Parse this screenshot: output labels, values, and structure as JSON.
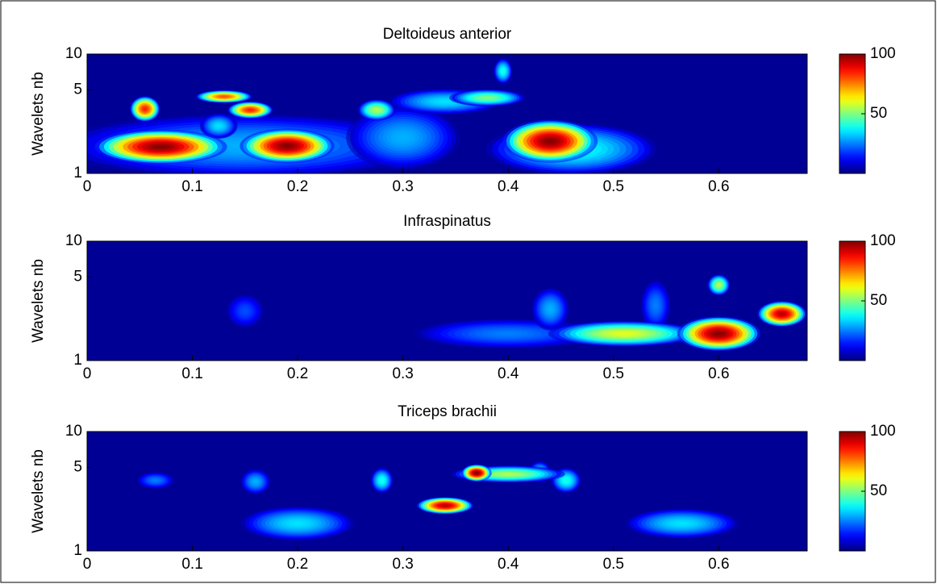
{
  "chart_data": [
    {
      "type": "heatmap",
      "title": "Deltoideus anterior",
      "ylabel": "Wavelets nb",
      "colormap": "jet",
      "xlim": [
        0,
        0.684
      ],
      "xticks": [
        0,
        0.1,
        0.2,
        0.3,
        0.4,
        0.5,
        0.6
      ],
      "ylim": [
        1,
        10
      ],
      "yticks": [
        1,
        5,
        10
      ],
      "log_y": true,
      "clim": [
        0,
        100
      ],
      "cticks": [
        50,
        100
      ],
      "spots": [
        {
          "x": 0.15,
          "y": 1.7,
          "value": 30,
          "dx": 0.1,
          "dy": 0.15
        },
        {
          "x": 0.46,
          "y": 1.6,
          "value": 40,
          "dx": 0.045,
          "dy": 0.12
        },
        {
          "x": 0.3,
          "y": 2,
          "value": 30,
          "dx": 0.03,
          "dy": 0.15
        },
        {
          "x": 0.125,
          "y": 2.5,
          "value": 35,
          "dx": 0.01,
          "dy": 0.06
        },
        {
          "x": 0.34,
          "y": 4,
          "value": 35,
          "dx": 0.03,
          "dy": 0.06
        },
        {
          "x": 0.38,
          "y": 4.3,
          "value": 50,
          "dx": 0.02,
          "dy": 0.04
        },
        {
          "x": 0.395,
          "y": 7.2,
          "value": 40,
          "dx": 0.005,
          "dy": 0.06
        },
        {
          "x": 0.275,
          "y": 3.4,
          "value": 55,
          "dx": 0.01,
          "dy": 0.05
        },
        {
          "x": 0.07,
          "y": 1.67,
          "value": 100,
          "dx": 0.035,
          "dy": 0.08
        },
        {
          "x": 0.055,
          "y": 3.47,
          "value": 85,
          "dx": 0.008,
          "dy": 0.06
        },
        {
          "x": 0.13,
          "y": 4.4,
          "value": 80,
          "dx": 0.015,
          "dy": 0.03
        },
        {
          "x": 0.155,
          "y": 3.4,
          "value": 85,
          "dx": 0.012,
          "dy": 0.04
        },
        {
          "x": 0.19,
          "y": 1.7,
          "value": 100,
          "dx": 0.025,
          "dy": 0.08
        },
        {
          "x": 0.44,
          "y": 1.86,
          "value": 100,
          "dx": 0.025,
          "dy": 0.1
        }
      ]
    },
    {
      "type": "heatmap",
      "title": "Infraspinatus",
      "ylabel": "Wavelets nb",
      "colormap": "jet",
      "xlim": [
        0,
        0.684
      ],
      "xticks": [
        0,
        0.1,
        0.2,
        0.3,
        0.4,
        0.5,
        0.6
      ],
      "ylim": [
        1,
        10
      ],
      "yticks": [
        1,
        5,
        10
      ],
      "log_y": true,
      "clim": [
        0,
        100
      ],
      "cticks": [
        50,
        100
      ],
      "spots": [
        {
          "x": 0.4,
          "y": 1.68,
          "value": 25,
          "dx": 0.05,
          "dy": 0.07
        },
        {
          "x": 0.15,
          "y": 2.6,
          "value": 20,
          "dx": 0.01,
          "dy": 0.08
        },
        {
          "x": 0.44,
          "y": 2.7,
          "value": 30,
          "dx": 0.01,
          "dy": 0.1
        },
        {
          "x": 0.54,
          "y": 2.9,
          "value": 25,
          "dx": 0.008,
          "dy": 0.12
        },
        {
          "x": 0.51,
          "y": 1.68,
          "value": 60,
          "dx": 0.04,
          "dy": 0.06
        },
        {
          "x": 0.6,
          "y": 4.3,
          "value": 55,
          "dx": 0.006,
          "dy": 0.05
        },
        {
          "x": 0.6,
          "y": 1.68,
          "value": 100,
          "dx": 0.022,
          "dy": 0.08
        },
        {
          "x": 0.66,
          "y": 2.46,
          "value": 95,
          "dx": 0.013,
          "dy": 0.06
        }
      ]
    },
    {
      "type": "heatmap",
      "title": "Triceps brachii",
      "ylabel": "Wavelets nb",
      "colormap": "jet",
      "xlim": [
        0,
        0.684
      ],
      "xticks": [
        0,
        0.1,
        0.2,
        0.3,
        0.4,
        0.5,
        0.6
      ],
      "ylim": [
        1,
        10
      ],
      "yticks": [
        1,
        5,
        10
      ],
      "log_y": true,
      "clim": [
        0,
        100
      ],
      "cticks": [
        50,
        100
      ],
      "spots": [
        {
          "x": 0.2,
          "y": 1.7,
          "value": 35,
          "dx": 0.03,
          "dy": 0.08
        },
        {
          "x": 0.565,
          "y": 1.7,
          "value": 35,
          "dx": 0.03,
          "dy": 0.07
        },
        {
          "x": 0.065,
          "y": 3.9,
          "value": 25,
          "dx": 0.01,
          "dy": 0.04
        },
        {
          "x": 0.16,
          "y": 3.8,
          "value": 30,
          "dx": 0.008,
          "dy": 0.06
        },
        {
          "x": 0.28,
          "y": 3.9,
          "value": 40,
          "dx": 0.006,
          "dy": 0.06
        },
        {
          "x": 0.455,
          "y": 3.9,
          "value": 40,
          "dx": 0.008,
          "dy": 0.06
        },
        {
          "x": 0.43,
          "y": 4.6,
          "value": 35,
          "dx": 0.006,
          "dy": 0.05
        },
        {
          "x": 0.4,
          "y": 4.4,
          "value": 55,
          "dx": 0.03,
          "dy": 0.04
        },
        {
          "x": 0.34,
          "y": 2.4,
          "value": 95,
          "dx": 0.015,
          "dy": 0.04
        },
        {
          "x": 0.37,
          "y": 4.5,
          "value": 100,
          "dx": 0.008,
          "dy": 0.04
        }
      ]
    }
  ]
}
